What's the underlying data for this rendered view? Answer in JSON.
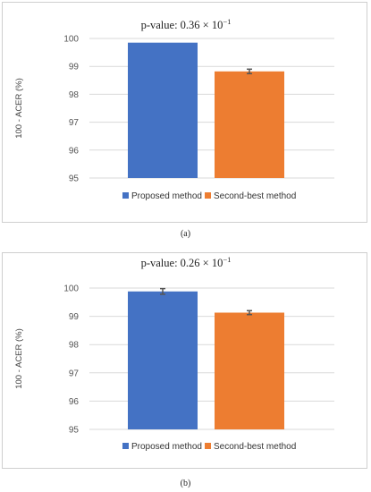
{
  "chart_data": [
    {
      "type": "bar",
      "annotation": "p-value:  0.36 × 10",
      "annotation_exponent": "−1",
      "ylabel": "100 - ACER (%)",
      "ylim": [
        95,
        100
      ],
      "yticks": [
        95,
        96,
        97,
        98,
        99,
        100
      ],
      "series": [
        {
          "name": "Proposed method",
          "value": 99.85,
          "error": 0.0,
          "color": "#4472C4"
        },
        {
          "name": "Second-best method",
          "value": 98.82,
          "error": 0.08,
          "color": "#ED7D31"
        }
      ],
      "legend": "bottom",
      "grid": true,
      "caption": "(a)"
    },
    {
      "type": "bar",
      "annotation": "p-value:  0.26 × 10",
      "annotation_exponent": "−1",
      "ylabel": "100 - ACER (%)",
      "ylim": [
        95,
        100
      ],
      "yticks": [
        95,
        96,
        97,
        98,
        99,
        100
      ],
      "series": [
        {
          "name": "Proposed method",
          "value": 99.88,
          "error": 0.1,
          "color": "#4472C4"
        },
        {
          "name": "Second-best method",
          "value": 99.13,
          "error": 0.07,
          "color": "#ED7D31"
        }
      ],
      "legend": "bottom",
      "grid": true,
      "caption": "(b)"
    }
  ]
}
